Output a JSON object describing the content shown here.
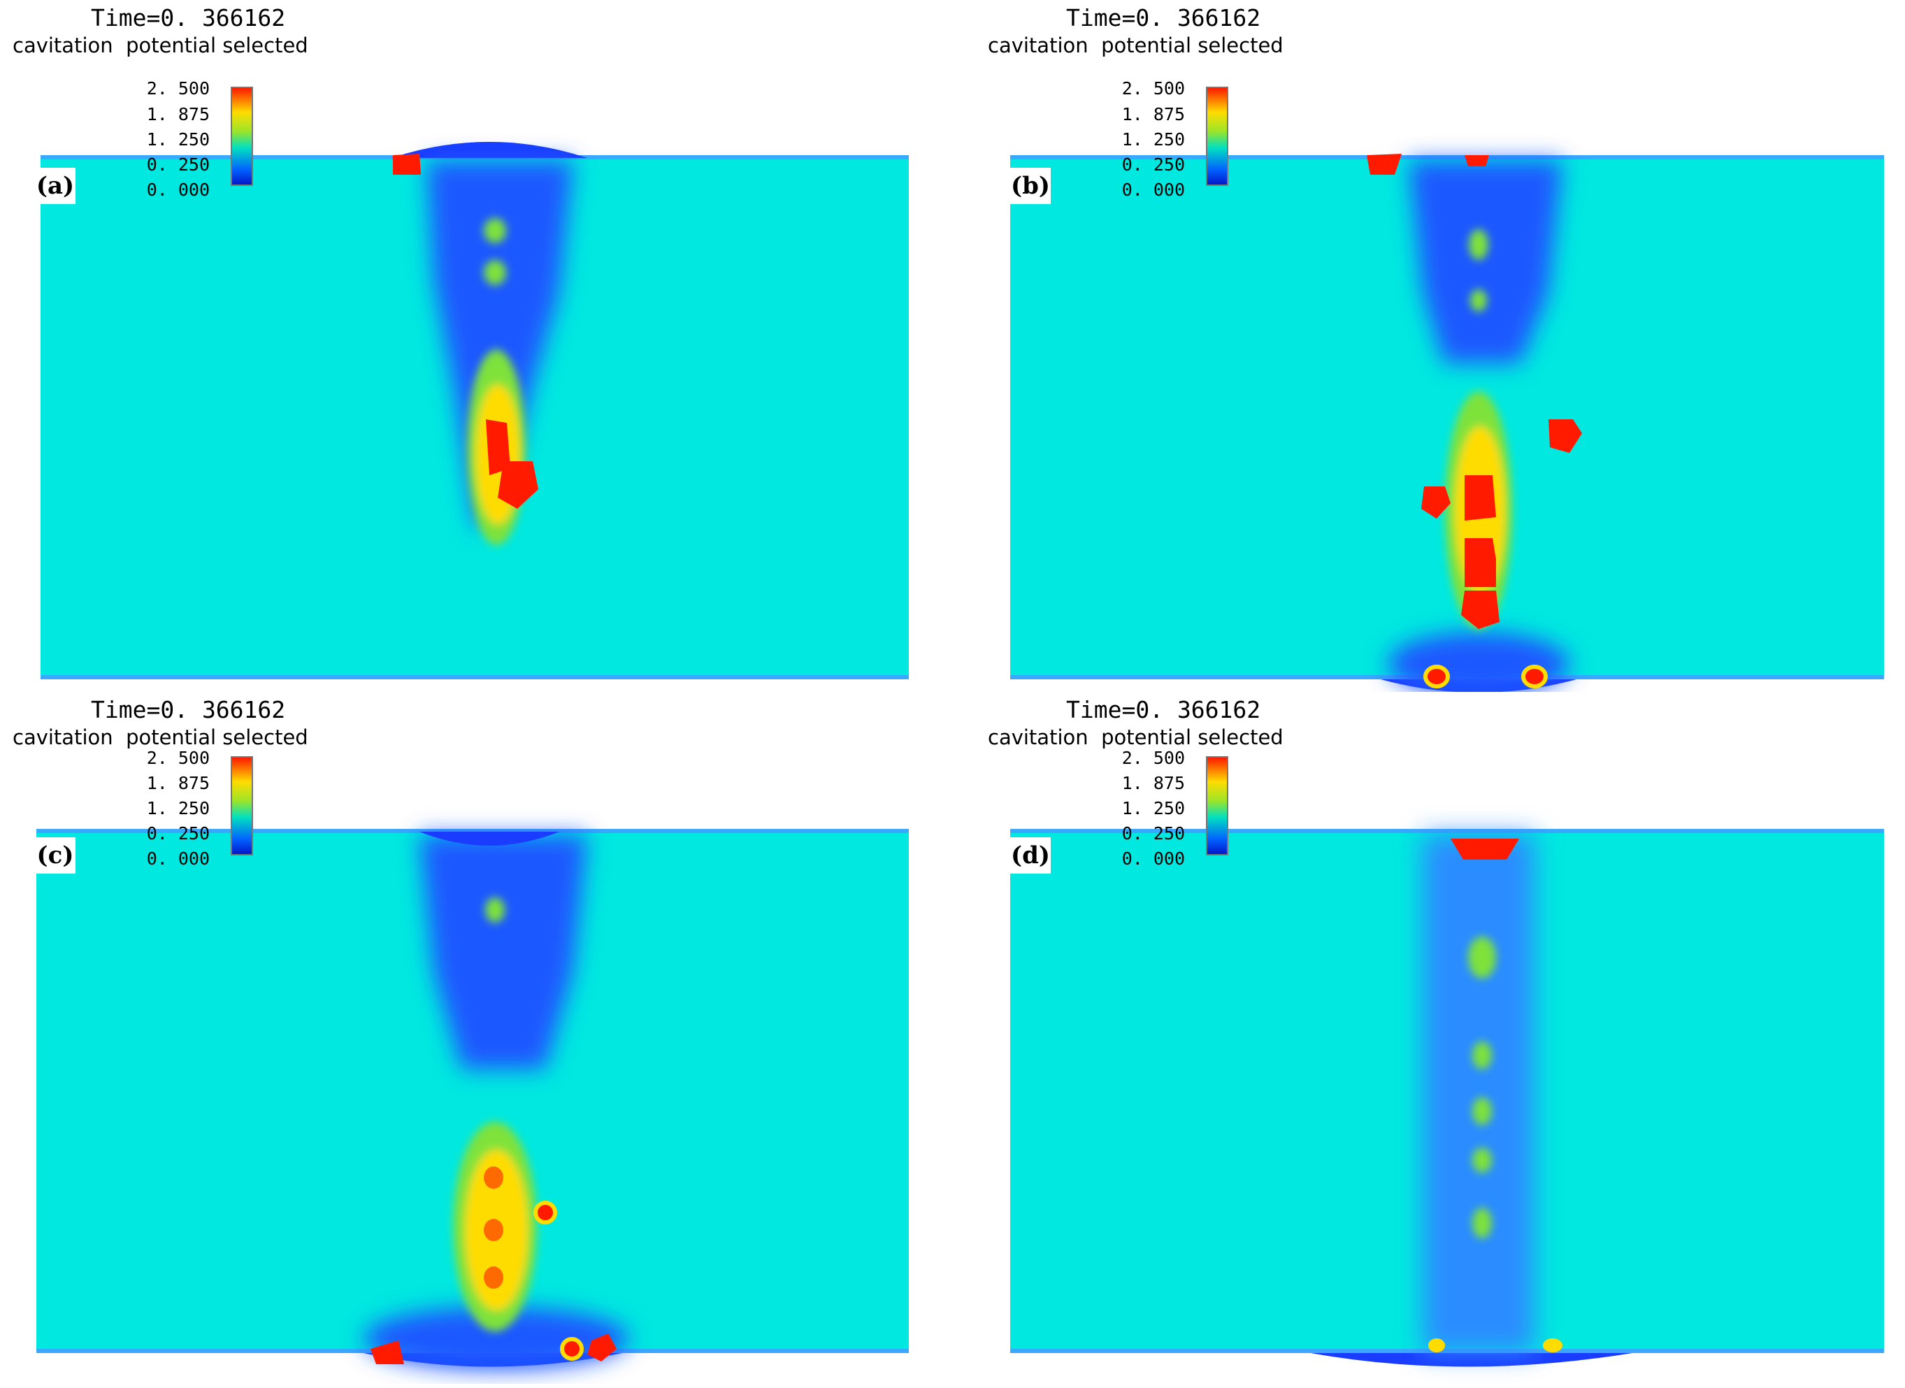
{
  "panels": [
    {
      "tag": "(a)",
      "time": "Time=0. 366162",
      "variable": "cavitation  potential selected",
      "ticks": [
        "2. 500",
        "1. 875",
        "1. 250",
        "0. 250",
        "0. 000"
      ]
    },
    {
      "tag": "(b)",
      "time": "Time=0. 366162",
      "variable": "cavitation  potential selected",
      "ticks": [
        "2. 500",
        "1. 875",
        "1. 250",
        "0. 250",
        "0. 000"
      ]
    },
    {
      "tag": "(c)",
      "time": "Time=0. 366162",
      "variable": "cavitation  potential selected",
      "ticks": [
        "2. 500",
        "1. 875",
        "1. 250",
        "0. 250",
        "0. 000"
      ]
    },
    {
      "tag": "(d)",
      "time": "Time=0. 366162",
      "variable": "cavitation  potential selected",
      "ticks": [
        "2. 500",
        "1. 875",
        "1. 250",
        "0. 250",
        "0. 000"
      ]
    }
  ],
  "colorscale": {
    "min": 0.0,
    "max": 2.5,
    "colors": [
      "#0018c8",
      "#0060ff",
      "#00e8e0",
      "#7ee23a",
      "#ffdc00",
      "#ff1a00"
    ],
    "background": "#00e8e0"
  }
}
